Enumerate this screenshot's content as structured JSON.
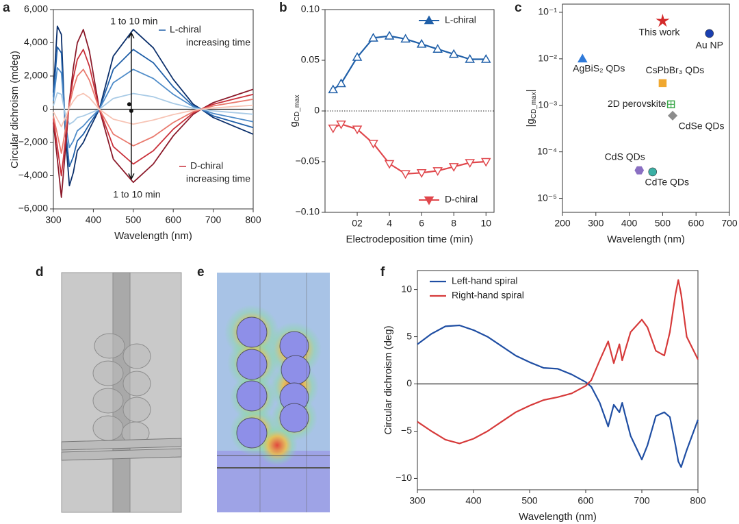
{
  "panel_labels": [
    "a",
    "b",
    "c",
    "d",
    "e",
    "f"
  ],
  "chart_data": [
    {
      "type": "line",
      "x": [
        300,
        310,
        320,
        330,
        340,
        350,
        360,
        375,
        390,
        415,
        450,
        500,
        550,
        600,
        650,
        670,
        700,
        750,
        800
      ],
      "series": [
        {
          "color": "#0b2f6b",
          "values": [
            1000,
            5000,
            4500,
            -1500,
            -4600,
            -3800,
            -2500,
            -2000,
            -1200,
            0,
            3200,
            4800,
            3700,
            1800,
            300,
            0,
            -500,
            -1000,
            -1500
          ]
        },
        {
          "color": "#1f5fa8",
          "values": [
            750,
            3750,
            3400,
            -1100,
            -3450,
            -2850,
            -1900,
            -1500,
            -900,
            0,
            2400,
            3600,
            2800,
            1350,
            200,
            0,
            -400,
            -750,
            -1100
          ]
        },
        {
          "color": "#4f8cc9",
          "values": [
            500,
            2500,
            2200,
            -800,
            -2300,
            -1900,
            -1300,
            -1000,
            -600,
            0,
            1600,
            2400,
            1850,
            900,
            150,
            0,
            -250,
            -500,
            -750
          ]
        },
        {
          "color": "#a9cbe6",
          "values": [
            200,
            1000,
            900,
            -300,
            -900,
            -750,
            -500,
            -400,
            -250,
            0,
            650,
            950,
            750,
            350,
            60,
            0,
            -100,
            -200,
            -300
          ]
        },
        {
          "color": "#8b1a2a",
          "values": [
            -800,
            -3000,
            -5300,
            -2500,
            500,
            2500,
            4000,
            4800,
            3500,
            0,
            -3000,
            -4400,
            -3300,
            -1600,
            -300,
            0,
            400,
            800,
            1200
          ]
        },
        {
          "color": "#c9303a",
          "values": [
            -600,
            -2250,
            -4000,
            -1900,
            400,
            1900,
            3000,
            3600,
            2600,
            0,
            -2250,
            -3300,
            -2500,
            -1200,
            -220,
            0,
            300,
            600,
            900
          ]
        },
        {
          "color": "#e97a6e",
          "values": [
            -400,
            -1500,
            -2650,
            -1250,
            250,
            1250,
            2000,
            2400,
            1750,
            0,
            -1500,
            -2200,
            -1650,
            -800,
            -150,
            0,
            200,
            400,
            600
          ]
        },
        {
          "color": "#f7c4b5",
          "values": [
            -150,
            -600,
            -1050,
            -500,
            100,
            500,
            800,
            950,
            700,
            0,
            -600,
            -900,
            -650,
            -320,
            -60,
            0,
            80,
            160,
            240
          ]
        }
      ],
      "xlim": [
        300,
        800
      ],
      "xticks": [
        300,
        400,
        500,
        600,
        700,
        800
      ],
      "ylim": [
        -6000,
        6000
      ],
      "yticks": [
        {
          "value": 6000,
          "label": "6,000"
        },
        {
          "value": 4000,
          "label": "4,000"
        },
        {
          "value": 2000,
          "label": "2,000"
        },
        0,
        {
          "value": -2000,
          "label": "−2,000"
        },
        {
          "value": -4000,
          "label": "−4,000"
        },
        {
          "value": -6000,
          "label": "−6,000"
        }
      ],
      "x_label": "Wavelength (nm)",
      "y_label": "Circular dichroism (mdeg)",
      "annotations": {
        "top_time": "1 to 10 min",
        "bottom_time": "1 to 10 min",
        "l_label": "L-chiral",
        "l_label_2": "increasing time",
        "d_label": "D-chiral",
        "d_label_2": "increasing time"
      }
    },
    {
      "type": "line",
      "x": [
        0.5,
        1,
        2,
        3,
        4,
        5,
        6,
        7,
        8,
        9,
        10
      ],
      "series": [
        {
          "name": "L-chiral",
          "color": "#1f5fa8",
          "marker": "triangle-up",
          "legend_loc": "upper right",
          "values": [
            0.021,
            0.027,
            0.053,
            0.072,
            0.074,
            0.071,
            0.066,
            0.061,
            0.056,
            0.051,
            0.051
          ]
        },
        {
          "name": "D-chiral",
          "color": "#e0474c",
          "marker": "triangle-down",
          "legend_loc": "lower right",
          "values": [
            -0.017,
            -0.013,
            -0.018,
            -0.032,
            -0.052,
            -0.062,
            -0.061,
            -0.059,
            -0.055,
            -0.051,
            -0.05
          ]
        }
      ],
      "xlim": [
        0,
        10.5
      ],
      "xticks": [
        {
          "value": 2,
          "label": "02"
        },
        4,
        6,
        8,
        10
      ],
      "ylim": [
        -0.1,
        0.1
      ],
      "yticks": [
        {
          "value": 0.1,
          "label": "0.10"
        },
        0.05,
        0,
        {
          "value": -0.05,
          "label": "−0.05"
        },
        {
          "value": -0.1,
          "label": "−0.10"
        }
      ],
      "x_label": "Electrodeposition time (min)",
      "y_label": "g",
      "y_label_subscript": "CD_max"
    },
    {
      "type": "scatter",
      "log_y": true,
      "points": [
        {
          "name": "This work",
          "x": 500,
          "y": 0.065,
          "color": "#d42a2a",
          "marker": "star"
        },
        {
          "name": "Au NP",
          "x": 640,
          "y": 0.035,
          "color": "#1a3fb0",
          "marker": "circle"
        },
        {
          "name": "AgBiS₂ QDs",
          "x": 260,
          "y": 0.01,
          "color": "#2f7ad9",
          "marker": "triangle"
        },
        {
          "name": "CsPbBr₃ QDs",
          "x": 500,
          "y": 0.003,
          "color": "#f0a830",
          "marker": "square"
        },
        {
          "name": "2D perovskite",
          "x": 525,
          "y": 0.00105,
          "color": "#3aa84a",
          "marker": "square-plus"
        },
        {
          "name": "CdSe QDs",
          "x": 530,
          "y": 0.0006,
          "color": "#8c8c8c",
          "marker": "diamond"
        },
        {
          "name": "CdS QDs",
          "x": 430,
          "y": 4e-05,
          "color": "#8a6fc2",
          "marker": "hexagon"
        },
        {
          "name": "CdTe QDs",
          "x": 470,
          "y": 3.7e-05,
          "color": "#3bb0a5",
          "marker": "circle"
        }
      ],
      "xlim": [
        200,
        700
      ],
      "xticks": [
        200,
        300,
        400,
        500,
        600,
        700
      ],
      "ylim": [
        5e-06,
        0.15
      ],
      "yticks": [
        {
          "value": 0.1,
          "label": "10⁻¹"
        },
        {
          "value": 0.01,
          "label": "10⁻²"
        },
        {
          "value": 0.001,
          "label": "10⁻³"
        },
        {
          "value": 0.0001,
          "label": "10⁻⁴"
        },
        {
          "value": 1e-05,
          "label": "10⁻⁵"
        }
      ],
      "x_label": "Wavelength (nm)",
      "y_label": "|g",
      "y_label_subscript": "CD_max",
      "y_label_end": "|"
    },
    {
      "type": "line",
      "x": [
        300,
        325,
        350,
        375,
        400,
        425,
        450,
        475,
        500,
        525,
        550,
        575,
        600,
        610,
        625,
        640,
        650,
        660,
        665,
        670,
        680,
        700,
        710,
        725,
        740,
        750,
        760,
        765,
        770,
        780,
        800
      ],
      "series": [
        {
          "name": "Left-hand spiral",
          "color": "#1f4ea3",
          "values": [
            4.2,
            5.3,
            6.1,
            6.2,
            5.7,
            5.0,
            4.0,
            3.0,
            2.3,
            1.7,
            1.6,
            1.0,
            0.2,
            -0.3,
            -2.0,
            -4.5,
            -2.2,
            -3.0,
            -2.0,
            -3.2,
            -5.5,
            -8.0,
            -6.5,
            -3.4,
            -3.0,
            -3.5,
            -6.5,
            -8.2,
            -8.8,
            -7.0,
            -3.8
          ]
        },
        {
          "name": "Right-hand spiral",
          "color": "#d63a3a",
          "values": [
            -4.0,
            -5.0,
            -5.9,
            -6.3,
            -5.8,
            -5.0,
            -4.0,
            -3.0,
            -2.3,
            -1.7,
            -1.4,
            -1.0,
            -0.2,
            0.4,
            2.5,
            4.5,
            2.2,
            4.2,
            2.5,
            3.5,
            5.5,
            6.8,
            6.0,
            3.5,
            3.0,
            5.5,
            9.5,
            11.0,
            9.5,
            5.0,
            2.6
          ]
        }
      ],
      "legend_loc": "upper left",
      "xlim": [
        300,
        800
      ],
      "xticks": [
        300,
        400,
        500,
        600,
        700,
        800
      ],
      "ylim": [
        -11.2,
        12
      ],
      "yticks": [
        10,
        5,
        0,
        {
          "value": -5,
          "label": "−5"
        },
        {
          "value": -10,
          "label": "−10"
        }
      ],
      "x_label": "Wavelength (nm)",
      "y_label": "Circular dichroism (deg)"
    }
  ]
}
